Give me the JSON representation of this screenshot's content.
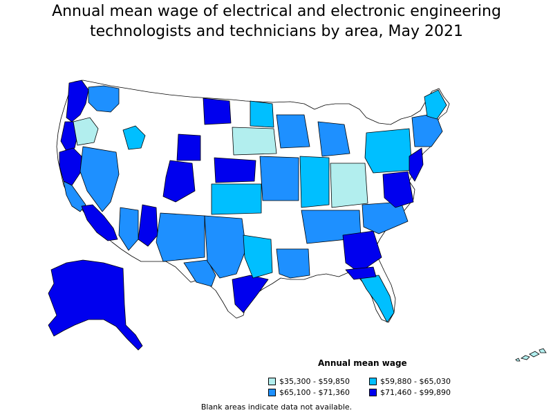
{
  "map": {
    "title_line1": "Annual mean wage of electrical and electronic engineering",
    "title_line2": "technologists and technicians by area, May 2021"
  },
  "legend": {
    "title": "Annual mean wage",
    "items": [
      {
        "label": "$35,300 - $59,850",
        "color": "#b2eeee"
      },
      {
        "label": "$59,880 - $65,030",
        "color": "#00bfff"
      },
      {
        "label": "$65,100 - $71,360",
        "color": "#1e90ff"
      },
      {
        "label": "$71,460 - $99,890",
        "color": "#0000ee"
      }
    ]
  },
  "note": "Blank areas indicate data not available."
}
